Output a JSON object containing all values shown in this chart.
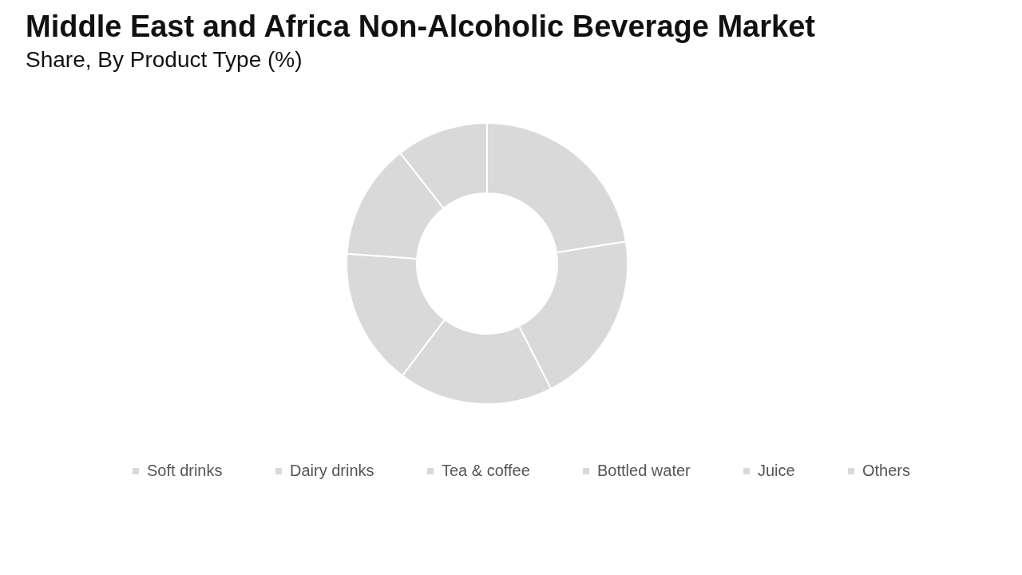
{
  "chart_data": {
    "type": "donut",
    "title": "Middle East and Africa Non-Alcoholic Beverage Market",
    "subtitle": "Share, By Product Type (%)",
    "categories": [
      "Soft drinks",
      "Dairy drinks",
      "Tea & coffee",
      "Bottled water",
      "Juice",
      "Others"
    ],
    "values": [
      22.5,
      20.0,
      17.8,
      15.8,
      13.3,
      10.6
    ],
    "colors": [
      "#d9d9d9",
      "#d9d9d9",
      "#d9d9d9",
      "#d9d9d9",
      "#d9d9d9",
      "#d9d9d9"
    ],
    "legend": "bottom"
  }
}
